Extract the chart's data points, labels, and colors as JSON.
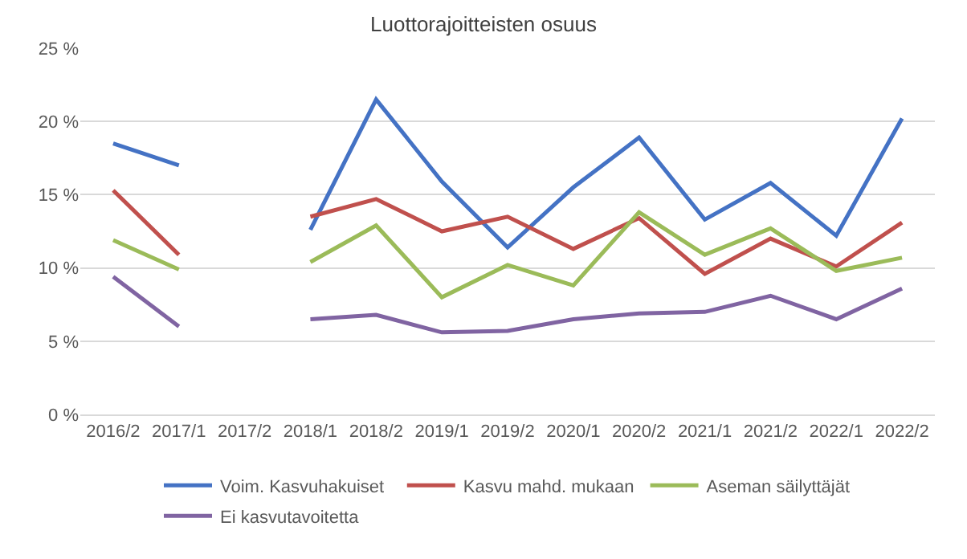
{
  "chart_data": {
    "type": "line",
    "title": "Luottorajoitteisten osuus",
    "categories": [
      "2016/2",
      "2017/1",
      "2017/2",
      "2018/1",
      "2018/2",
      "2019/1",
      "2019/2",
      "2020/1",
      "2020/2",
      "2021/1",
      "2021/2",
      "2022/1",
      "2022/2"
    ],
    "series": [
      {
        "name": "Voim. Kasvuhakuiset",
        "color": "#4472c4",
        "values": [
          18.5,
          17.0,
          null,
          12.6,
          21.5,
          15.9,
          11.4,
          15.5,
          18.9,
          13.3,
          15.8,
          12.2,
          20.2
        ]
      },
      {
        "name": "Kasvu mahd. mukaan",
        "color": "#c0504d",
        "values": [
          15.3,
          10.9,
          null,
          13.5,
          14.7,
          12.5,
          13.5,
          11.3,
          13.4,
          9.6,
          12.0,
          10.1,
          13.1
        ]
      },
      {
        "name": "Aseman säilyttäjät",
        "color": "#9bbb59",
        "values": [
          11.9,
          9.9,
          null,
          10.4,
          12.9,
          8.0,
          10.2,
          8.8,
          13.8,
          10.9,
          12.7,
          9.8,
          10.7
        ]
      },
      {
        "name": "Ei kasvutavoitetta",
        "color": "#8064a2",
        "values": [
          9.4,
          6.0,
          null,
          6.5,
          6.8,
          5.6,
          5.7,
          6.5,
          6.9,
          7.0,
          8.1,
          6.5,
          8.6
        ]
      }
    ],
    "ylim": [
      0,
      25
    ],
    "yticks": [
      {
        "value": 0,
        "label": "0 %"
      },
      {
        "value": 5,
        "label": "5 %"
      },
      {
        "value": 10,
        "label": "10 %"
      },
      {
        "value": 15,
        "label": "15 %"
      },
      {
        "value": 20,
        "label": "20 %"
      },
      {
        "value": 25,
        "label": "25 %"
      }
    ],
    "grid": "y",
    "legend": "bottom",
    "marker": "none",
    "line_style": "solid"
  }
}
